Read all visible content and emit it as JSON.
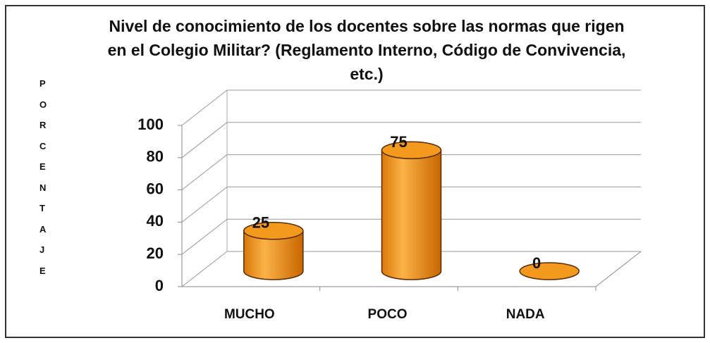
{
  "chart_data": {
    "type": "bar",
    "title": "Nivel de conocimiento  de los docentes sobre las normas que rigen en el Colegio Militar? (Reglamento Interno, Código de Convivencia, etc.)",
    "ylabel": "PORCENTAJE",
    "categories": [
      "MUCHO",
      "POCO",
      "NADA"
    ],
    "values": [
      25,
      75,
      0
    ],
    "color": "#f39a1e",
    "ylim": [
      0,
      100
    ],
    "yticks": [
      0,
      20,
      40,
      60,
      80,
      100
    ],
    "grid": true
  }
}
